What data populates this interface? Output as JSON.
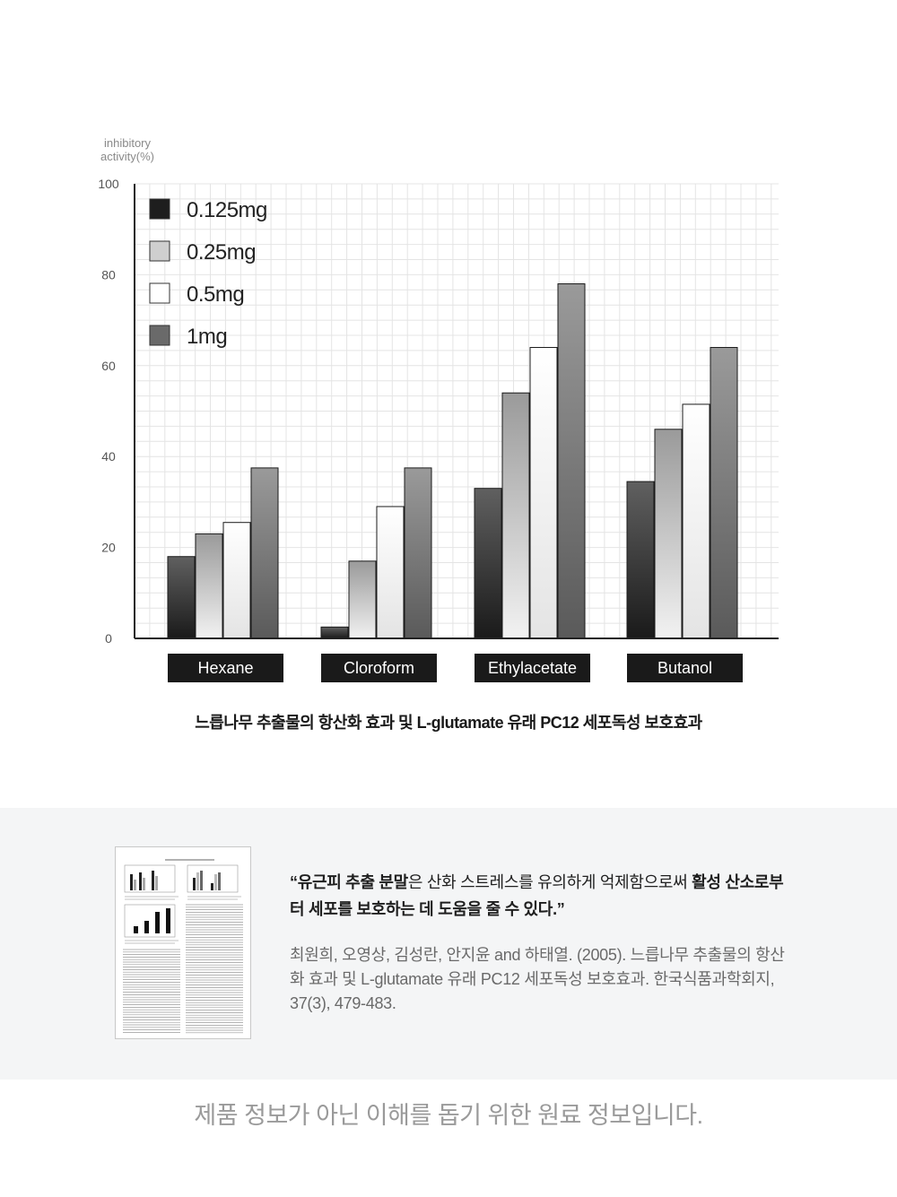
{
  "chart_data": {
    "type": "bar",
    "title": "느릅나무 추출물의 항산화 효과 및 L-glutamate  유래 PC12 세포독성 보호효과",
    "ylabel": "inhibitory\nactivity(%)",
    "xlabel": "",
    "ylim": [
      0,
      100
    ],
    "yticks": [
      "0",
      "20",
      "40",
      "60",
      "80",
      "100"
    ],
    "grid": true,
    "legend_position": "top-left",
    "categories": [
      "Hexane",
      "Cloroform",
      "Ethylacetate",
      "Butanol"
    ],
    "series": [
      {
        "name": "0.125mg",
        "values": [
          18,
          2.5,
          33,
          34.5
        ]
      },
      {
        "name": "0.25mg",
        "values": [
          23,
          17,
          54,
          46
        ]
      },
      {
        "name": "0.5mg",
        "values": [
          25.5,
          29,
          64,
          51.5
        ]
      },
      {
        "name": "1mg",
        "values": [
          37.5,
          37.5,
          78,
          64
        ]
      }
    ]
  },
  "reference": {
    "quote_parts": [
      {
        "text": "“유근피 추출 분말",
        "bold": true
      },
      {
        "text": "은 산화 스트레스를 유의하게 억제함으로써 ",
        "bold": false
      },
      {
        "text": "활성 산소로부터 세포를 보호하는 데 도움을 줄 수 있다.”",
        "bold": true
      }
    ],
    "citation": "최원희, 오영상, 김성란, 안지윤 and 하태열. (2005). 느릅나무 추출물의 항산화 효과 및 L-glutamate 유래 PC12 세포독성 보호효과. 한국식품과학회지, 37(3), 479-483."
  },
  "disclaimer": "제품 정보가 아닌 이해를 돕기 위한 원료 정보입니다."
}
